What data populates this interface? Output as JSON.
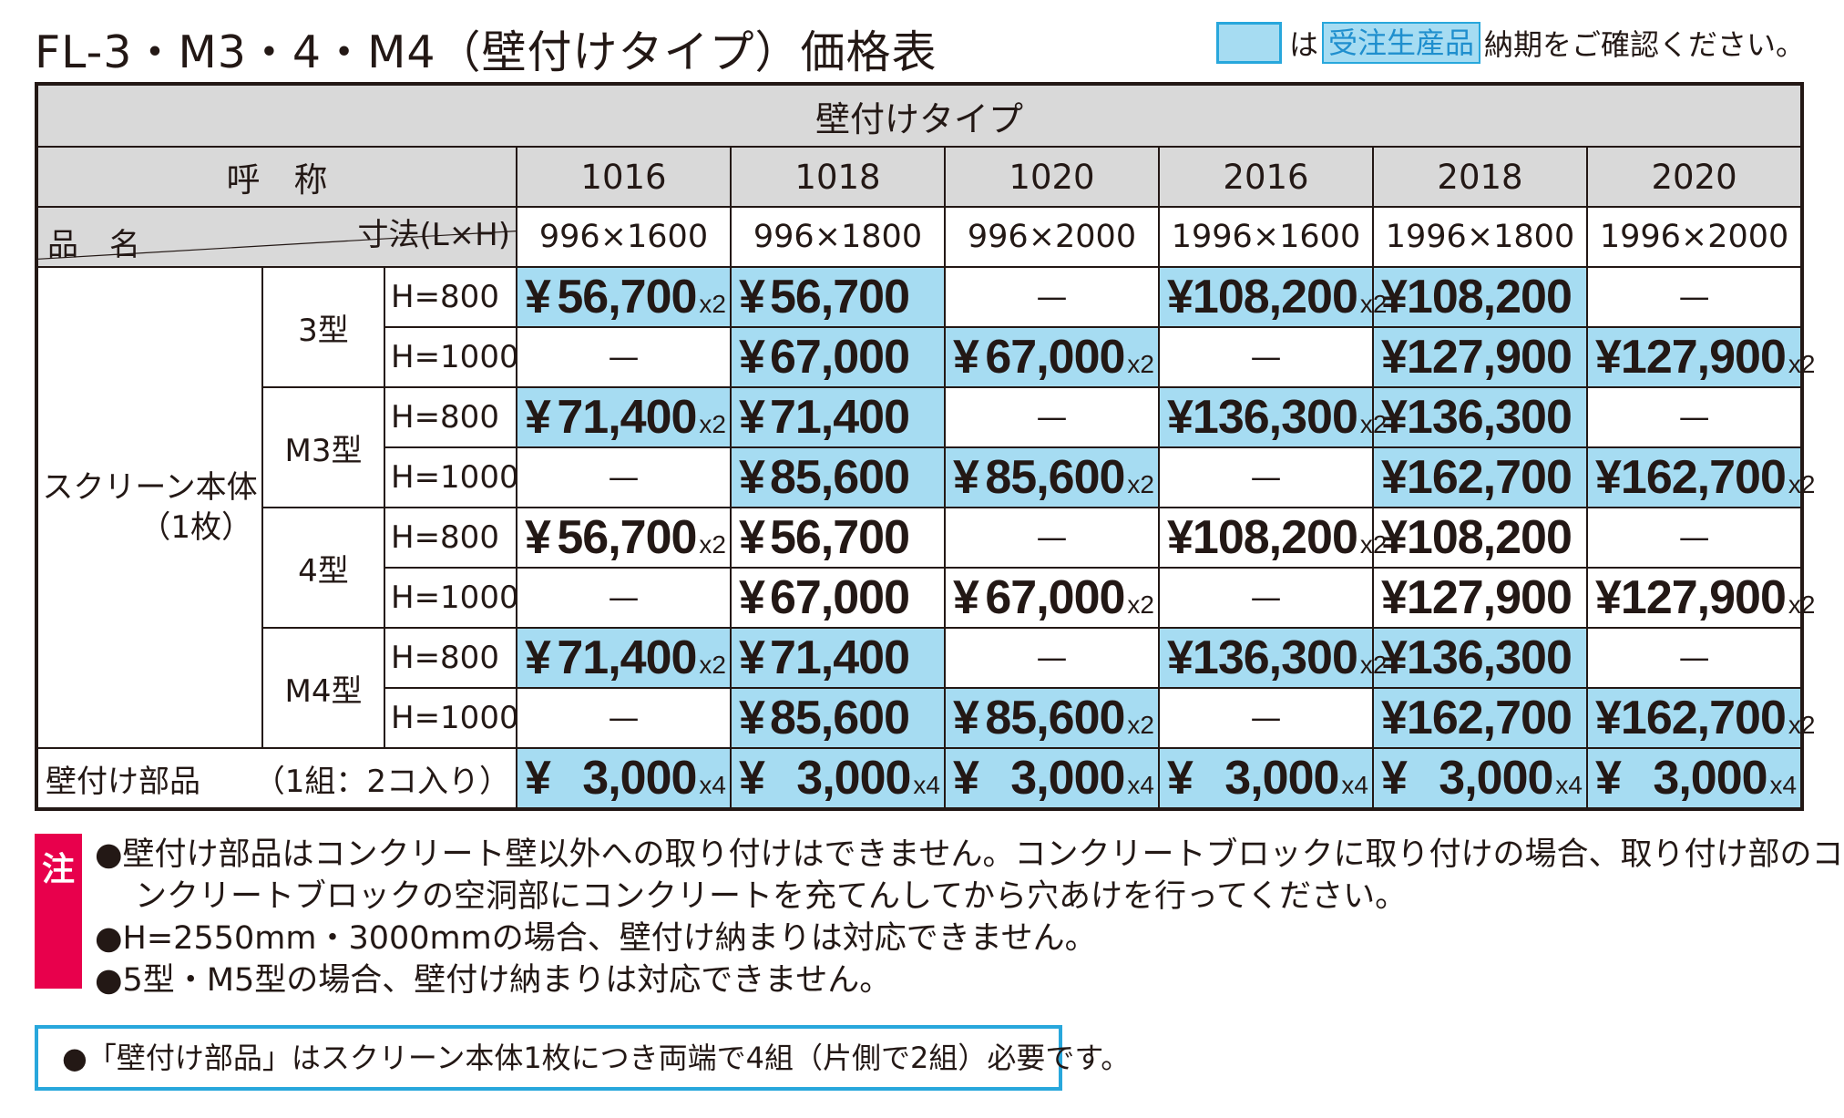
{
  "title": "FL-3・M3・4・M4（壁付けタイプ）価格表",
  "legend": {
    "prefix": "は",
    "tag": "受注生産品",
    "suffix": "納期をご確認ください。"
  },
  "table": {
    "group_header": "壁付けタイプ",
    "name_label": "呼　称",
    "product_label": "品　名",
    "size_label": "寸法(L×H)",
    "series": [
      "1016",
      "1018",
      "1020",
      "2016",
      "2018",
      "2020"
    ],
    "sizes": [
      "996×1600",
      "996×1800",
      "996×2000",
      "1996×1600",
      "1996×1800",
      "1996×2000"
    ],
    "category_line1": "スクリーン本体",
    "category_line2": "（1枚）",
    "types": [
      {
        "name": "3型",
        "rows": [
          {
            "h": "H=800",
            "cells": [
              {
                "yen": "¥",
                "amount": "56,700",
                "mul": "x2",
                "blue": true
              },
              {
                "yen": "¥",
                "amount": "56,700",
                "mul": "",
                "blue": true
              },
              {
                "dash": "—"
              },
              {
                "yen": "¥",
                "amount": "108,200",
                "mul": "x2",
                "blue": true
              },
              {
                "yen": "¥",
                "amount": "108,200",
                "mul": "",
                "blue": true
              },
              {
                "dash": "—"
              }
            ]
          },
          {
            "h": "H=1000",
            "cells": [
              {
                "dash": "—"
              },
              {
                "yen": "¥",
                "amount": "67,000",
                "mul": "",
                "blue": true
              },
              {
                "yen": "¥",
                "amount": "67,000",
                "mul": "x2",
                "blue": true
              },
              {
                "dash": "—"
              },
              {
                "yen": "¥",
                "amount": "127,900",
                "mul": "",
                "blue": true
              },
              {
                "yen": "¥",
                "amount": "127,900",
                "mul": "x2",
                "blue": true
              }
            ]
          }
        ]
      },
      {
        "name": "M3型",
        "rows": [
          {
            "h": "H=800",
            "cells": [
              {
                "yen": "¥",
                "amount": "71,400",
                "mul": "x2",
                "blue": true
              },
              {
                "yen": "¥",
                "amount": "71,400",
                "mul": "",
                "blue": true
              },
              {
                "dash": "—"
              },
              {
                "yen": "¥",
                "amount": "136,300",
                "mul": "x2",
                "blue": true
              },
              {
                "yen": "¥",
                "amount": "136,300",
                "mul": "",
                "blue": true
              },
              {
                "dash": "—"
              }
            ]
          },
          {
            "h": "H=1000",
            "cells": [
              {
                "dash": "—"
              },
              {
                "yen": "¥",
                "amount": "85,600",
                "mul": "",
                "blue": true
              },
              {
                "yen": "¥",
                "amount": "85,600",
                "mul": "x2",
                "blue": true
              },
              {
                "dash": "—"
              },
              {
                "yen": "¥",
                "amount": "162,700",
                "mul": "",
                "blue": true
              },
              {
                "yen": "¥",
                "amount": "162,700",
                "mul": "x2",
                "blue": true
              }
            ]
          }
        ]
      },
      {
        "name": "4型",
        "rows": [
          {
            "h": "H=800",
            "cells": [
              {
                "yen": "¥",
                "amount": "56,700",
                "mul": "x2",
                "blue": false
              },
              {
                "yen": "¥",
                "amount": "56,700",
                "mul": "",
                "blue": false
              },
              {
                "dash": "—"
              },
              {
                "yen": "¥",
                "amount": "108,200",
                "mul": "x2",
                "blue": false
              },
              {
                "yen": "¥",
                "amount": "108,200",
                "mul": "",
                "blue": false
              },
              {
                "dash": "—"
              }
            ]
          },
          {
            "h": "H=1000",
            "cells": [
              {
                "dash": "—"
              },
              {
                "yen": "¥",
                "amount": "67,000",
                "mul": "",
                "blue": false
              },
              {
                "yen": "¥",
                "amount": "67,000",
                "mul": "x2",
                "blue": false
              },
              {
                "dash": "—"
              },
              {
                "yen": "¥",
                "amount": "127,900",
                "mul": "",
                "blue": false
              },
              {
                "yen": "¥",
                "amount": "127,900",
                "mul": "x2",
                "blue": false
              }
            ]
          }
        ]
      },
      {
        "name": "M4型",
        "rows": [
          {
            "h": "H=800",
            "cells": [
              {
                "yen": "¥",
                "amount": "71,400",
                "mul": "x2",
                "blue": true
              },
              {
                "yen": "¥",
                "amount": "71,400",
                "mul": "",
                "blue": true
              },
              {
                "dash": "—"
              },
              {
                "yen": "¥",
                "amount": "136,300",
                "mul": "x2",
                "blue": true
              },
              {
                "yen": "¥",
                "amount": "136,300",
                "mul": "",
                "blue": true
              },
              {
                "dash": "—"
              }
            ]
          },
          {
            "h": "H=1000",
            "cells": [
              {
                "dash": "—"
              },
              {
                "yen": "¥",
                "amount": "85,600",
                "mul": "",
                "blue": true
              },
              {
                "yen": "¥",
                "amount": "85,600",
                "mul": "x2",
                "blue": true
              },
              {
                "dash": "—"
              },
              {
                "yen": "¥",
                "amount": "162,700",
                "mul": "",
                "blue": true
              },
              {
                "yen": "¥",
                "amount": "162,700",
                "mul": "x2",
                "blue": true
              }
            ]
          }
        ]
      }
    ],
    "footer": {
      "label": "壁付け部品",
      "qty": "（1組：2コ入り）",
      "cells": [
        {
          "yen": "¥",
          "amount": "3,000",
          "mul": "x4",
          "blue": true
        },
        {
          "yen": "¥",
          "amount": "3,000",
          "mul": "x4",
          "blue": true
        },
        {
          "yen": "¥",
          "amount": "3,000",
          "mul": "x4",
          "blue": true
        },
        {
          "yen": "¥",
          "amount": "3,000",
          "mul": "x4",
          "blue": true
        },
        {
          "yen": "¥",
          "amount": "3,000",
          "mul": "x4",
          "blue": true
        },
        {
          "yen": "¥",
          "amount": "3,000",
          "mul": "x4",
          "blue": true
        }
      ]
    }
  },
  "notes": {
    "badge": "注",
    "line1": "●壁付け部品はコンクリート壁以外への取り付けはできません。コンクリートブロックに取り付けの場合、取り付け部のコ",
    "line2": "ンクリートブロックの空洞部にコンクリートを充てんしてから穴あけを行ってください。",
    "line3": "●H=2550mm・3000mmの場合、壁付け納まりは対応できません。",
    "line4": "●5型・M5型の場合、壁付け納まりは対応できません。"
  },
  "box_note": "●「壁付け部品」はスクリーン本体1枚につき両端で4組（片側で2組）必要です。",
  "colors": {
    "highlight": "#a6dcf2",
    "border_blue": "#28a7dc",
    "header_gray": "#d9d9d9",
    "note_badge": "#e8004c"
  }
}
